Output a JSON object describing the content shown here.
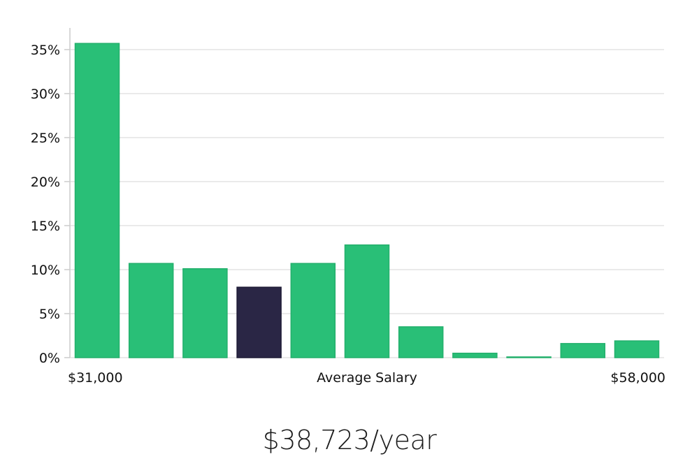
{
  "chart_data": {
    "type": "bar",
    "y_ticks": [
      "0%",
      "5%",
      "10%",
      "15%",
      "20%",
      "25%",
      "30%",
      "35%"
    ],
    "ylim": [
      0,
      37.5
    ],
    "values": [
      35.7,
      10.7,
      10.1,
      8.0,
      10.7,
      12.8,
      3.5,
      0.5,
      0.05,
      1.6,
      1.9
    ],
    "highlight_index": 3,
    "x_label_left": "$31,000",
    "x_label_center": "Average Salary",
    "x_label_right": "$58,000",
    "colors": {
      "bar": "#29bf77",
      "bar_highlight": "#2a2645",
      "grid": "#e3e3e3",
      "axis": "#cccccc"
    },
    "grid": true
  },
  "headline": "$38,723/year"
}
